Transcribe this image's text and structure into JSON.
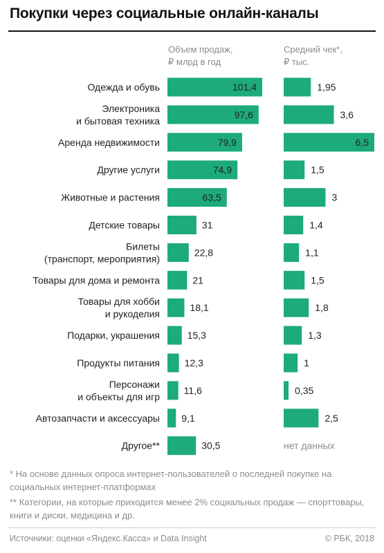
{
  "title": "Покупки через социальные онлайн-каналы",
  "columns": {
    "sales": [
      "Объем продаж,",
      "₽ млрд в год"
    ],
    "check": [
      "Средний чек*,",
      "₽ тыс."
    ]
  },
  "colors": {
    "bar": "#1dab7c",
    "text": "#222222",
    "muted": "#8c8c8c"
  },
  "chart_data": {
    "type": "bar",
    "orientation": "horizontal",
    "title": "Покупки через социальные онлайн-каналы",
    "categories": [
      [
        "Одежда и обувь"
      ],
      [
        "Электроника",
        "и бытовая техника"
      ],
      [
        "Аренда недвижимости"
      ],
      [
        "Другие услуги"
      ],
      [
        "Животные и растения"
      ],
      [
        "Детские товары"
      ],
      [
        "Билеты",
        "(транспорт, мероприятия)"
      ],
      [
        "Товары для дома и ремонта"
      ],
      [
        "Товары для хобби",
        "и рукоделия"
      ],
      [
        "Подарки, украшения"
      ],
      [
        "Продукты питания"
      ],
      [
        "Персонажи",
        "и объекты для игр"
      ],
      [
        "Автозапчасти и аксессуары"
      ],
      [
        "Другое**"
      ]
    ],
    "series": [
      {
        "name": "Объем продаж, ₽ млрд в год",
        "values": [
          101.4,
          97.6,
          79.9,
          74.9,
          63.5,
          31,
          22.8,
          21,
          18.1,
          15.3,
          12.3,
          11.6,
          9.1,
          30.5
        ],
        "labels": [
          "101,4",
          "97,6",
          "79,9",
          "74,9",
          "63,5",
          "31",
          "22,8",
          "21",
          "18,1",
          "15,3",
          "12,3",
          "11,6",
          "9,1",
          "30,5"
        ]
      },
      {
        "name": "Средний чек*, ₽ тыс.",
        "values": [
          1.95,
          3.6,
          6.5,
          1.5,
          3,
          1.4,
          1.1,
          1.5,
          1.8,
          1.3,
          1,
          0.35,
          2.5,
          null
        ],
        "labels": [
          "1,95",
          "3,6",
          "6,5",
          "1,5",
          "3",
          "1,4",
          "1,1",
          "1,5",
          "1,8",
          "1,3",
          "1",
          "0,35",
          "2,5",
          "нет данных"
        ]
      }
    ]
  },
  "notes": [
    "* На основе данных опроса интернет-пользователей о последней покупке на социальных интернет-платформах",
    "** Категории, на которые приходится менее 2% социальных продаж — спорттовары, книги и диски, медицина и др."
  ],
  "source": "Источники: оценки «Яндекс.Касса» и Data Insight",
  "copyright": "© РБК, 2018"
}
